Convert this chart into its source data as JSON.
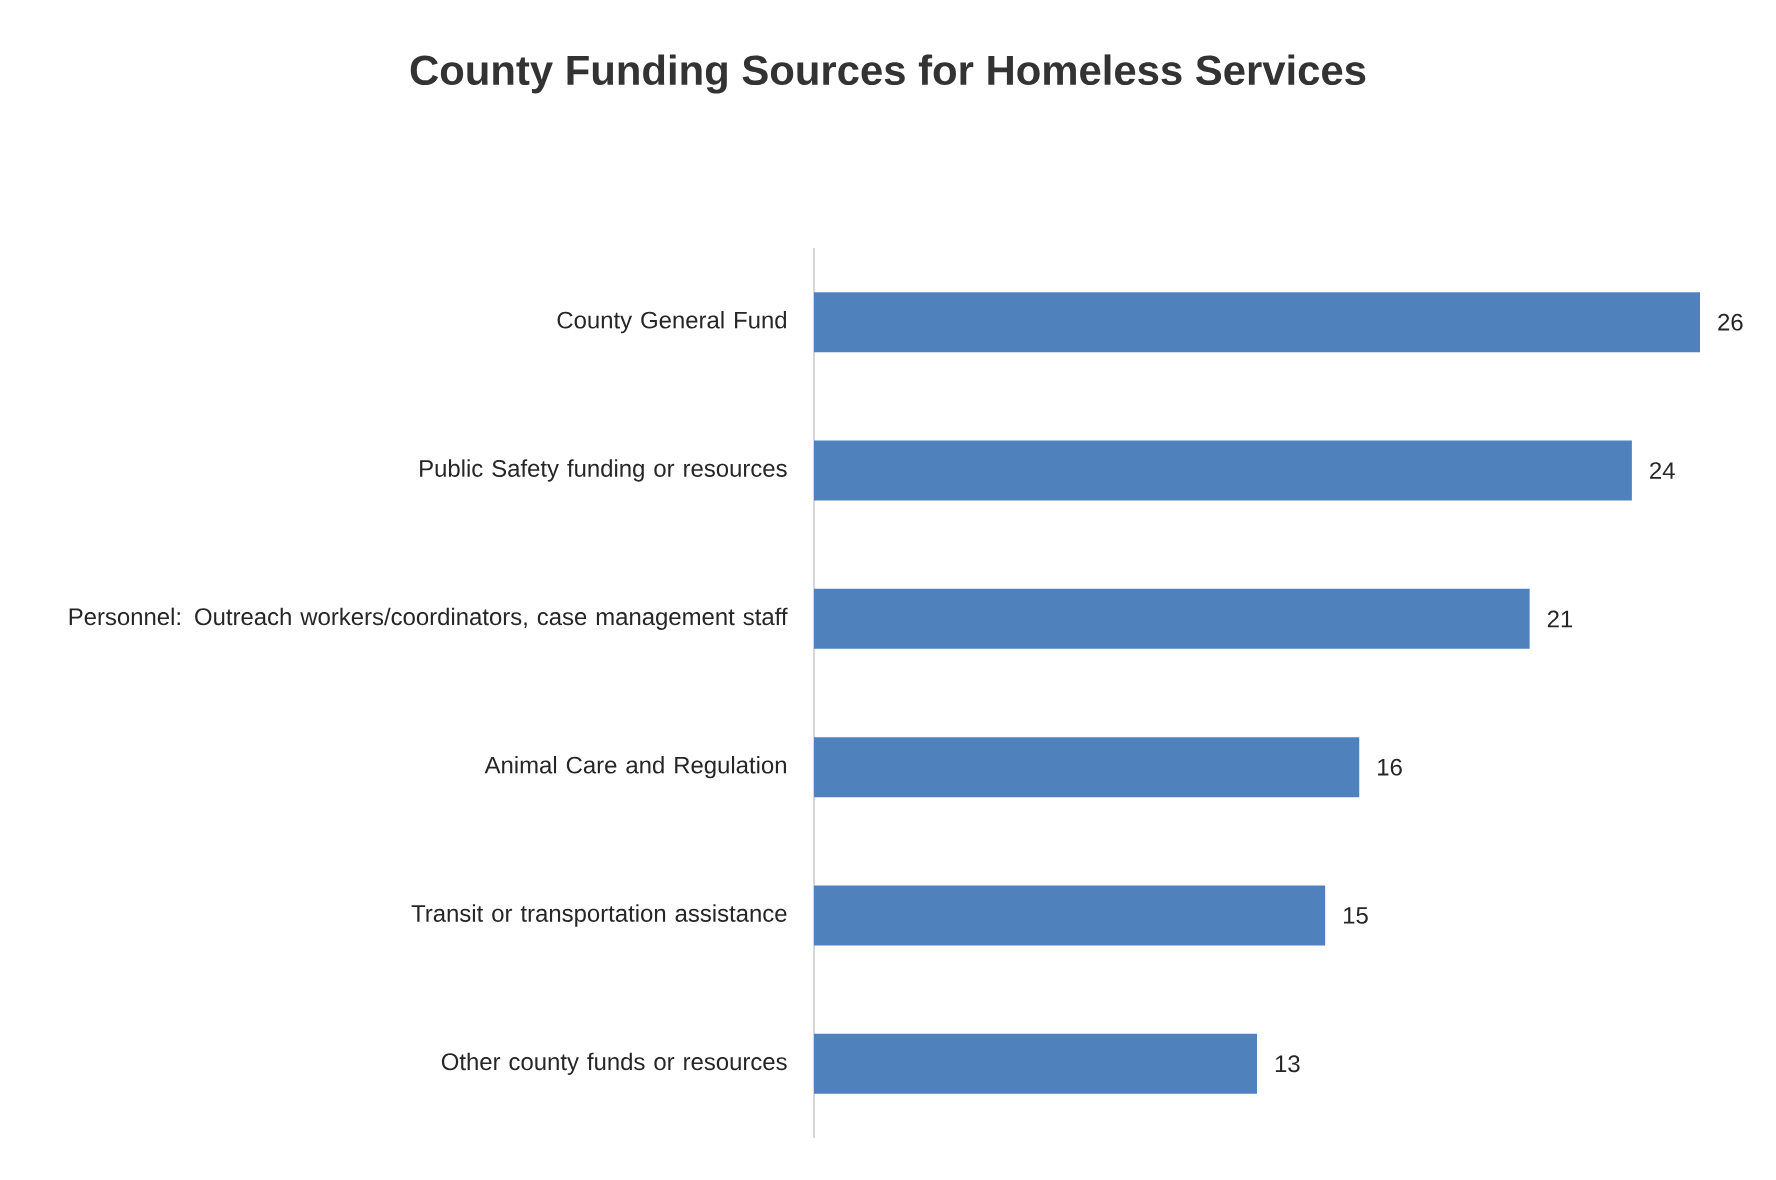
{
  "chart_data": {
    "type": "bar",
    "orientation": "horizontal",
    "title": "County Funding Sources for Homeless Services",
    "categories": [
      "County General Fund",
      "Public Safety funding or resources",
      "Personnel: Outreach workers/coordinators, case management staff",
      "Animal Care and Regulation",
      "Transit or transportation assistance",
      "Other county funds or resources"
    ],
    "values": [
      26,
      24,
      21,
      16,
      15,
      13
    ],
    "color": "#4f81bd",
    "data_labels": true,
    "grid": false
  }
}
